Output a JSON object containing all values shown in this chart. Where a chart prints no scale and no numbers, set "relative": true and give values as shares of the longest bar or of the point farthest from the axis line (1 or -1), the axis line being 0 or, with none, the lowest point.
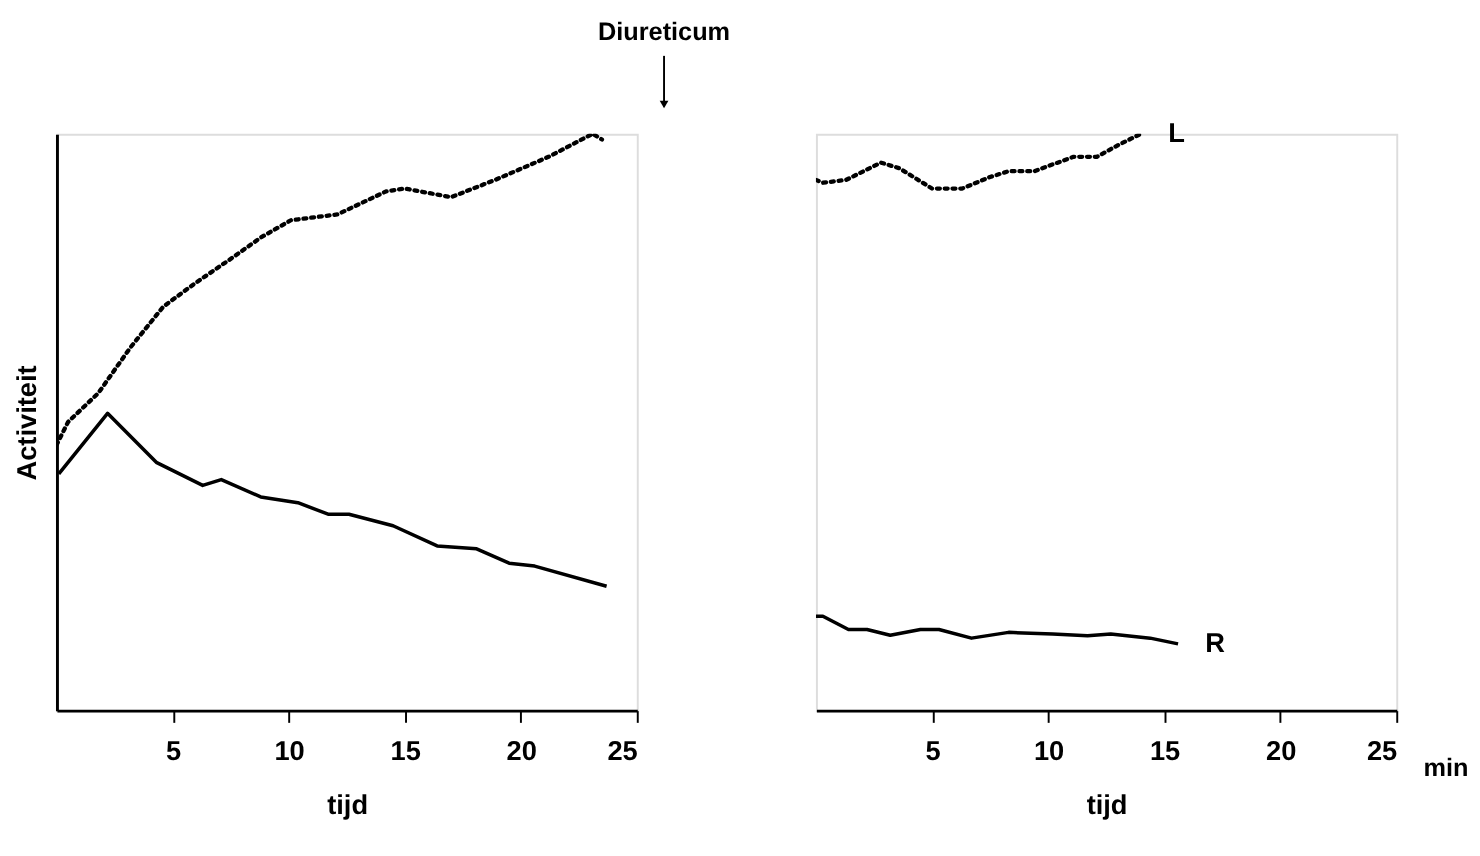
{
  "chart_data": [
    {
      "type": "line",
      "relative": true,
      "xlabel": "tijd",
      "ylabel": "Activiteit",
      "xlim": [
        0,
        25
      ],
      "xticks": [
        5,
        10,
        15,
        20,
        25
      ],
      "tick_labels": "x",
      "grid": false,
      "legend": false,
      "annotations": [
        "Diureticum"
      ],
      "series": [
        {
          "color": "#000000",
          "line_style": "dotted",
          "x": [
            0,
            0.5,
            1.8,
            3.2,
            4.6,
            5.95,
            7.4,
            8.8,
            10.1,
            12.1,
            14.2,
            15.0,
            17.0,
            18.9,
            21.2,
            23.1,
            23.5
          ],
          "values": [
            0.46,
            0.5,
            0.55,
            0.63,
            0.7,
            0.74,
            0.78,
            0.82,
            0.85,
            0.86,
            0.9,
            0.905,
            0.89,
            0.92,
            0.96,
            1.0,
            0.99
          ]
        },
        {
          "color": "#000000",
          "line_style": "solid",
          "x": [
            0.1,
            2.2,
            4.3,
            6.3,
            7.1,
            8.8,
            10.4,
            11.7,
            12.6,
            14.5,
            16.4,
            18.1,
            19.5,
            20.6,
            23.7
          ],
          "values": [
            0.41,
            0.515,
            0.43,
            0.39,
            0.4,
            0.37,
            0.36,
            0.34,
            0.34,
            0.32,
            0.285,
            0.28,
            0.255,
            0.25,
            0.215
          ]
        }
      ]
    },
    {
      "type": "line",
      "relative": true,
      "xlabel": "tijd",
      "xlim": [
        0,
        25
      ],
      "xticks": [
        5,
        10,
        15,
        20,
        25
      ],
      "tick_labels": "x",
      "grid": false,
      "legend": false,
      "annotations": [
        "min"
      ],
      "series": [
        {
          "name": "L",
          "color": "#000000",
          "line_style": "dotted",
          "x": [
            0,
            0.3,
            1.3,
            2.8,
            3.6,
            5.0,
            6.3,
            7.5,
            8.3,
            9.4,
            11.1,
            12.1,
            13.0,
            14.0
          ],
          "values": [
            0.92,
            0.915,
            0.92,
            0.95,
            0.94,
            0.905,
            0.905,
            0.925,
            0.935,
            0.935,
            0.96,
            0.96,
            0.98,
            1.0
          ]
        },
        {
          "name": "R",
          "color": "#000000",
          "line_style": "solid",
          "x": [
            0,
            0.3,
            1.4,
            2.2,
            3.2,
            4.5,
            5.3,
            6.7,
            8.3,
            10.2,
            11.7,
            12.7,
            14.4,
            15.6
          ],
          "values": [
            0.163,
            0.163,
            0.14,
            0.14,
            0.13,
            0.14,
            0.14,
            0.125,
            0.135,
            0.132,
            0.129,
            0.132,
            0.125,
            0.115
          ]
        }
      ]
    }
  ]
}
